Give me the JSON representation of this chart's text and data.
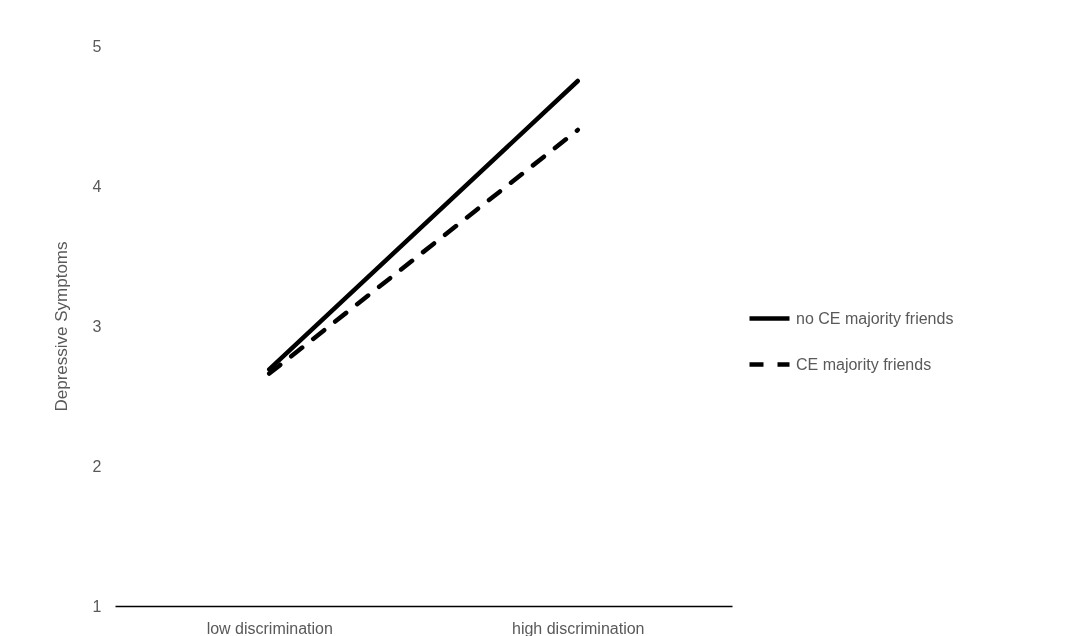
{
  "chart_data": {
    "type": "line",
    "ylabel": "Depressive Symptoms",
    "categories": [
      "low discrimination",
      "high discrimination"
    ],
    "series": [
      {
        "name": "no CE majority friends",
        "color": "#000000",
        "line_style": "solid",
        "values": [
          2.69,
          4.75
        ]
      },
      {
        "name": "CE majority friends",
        "color": "#000000",
        "line_style": "dashed",
        "values": [
          2.66,
          4.4
        ]
      }
    ],
    "ylim": [
      1,
      5
    ],
    "yticks": [
      1,
      2,
      3,
      4,
      5
    ],
    "grid": false,
    "legend": "right",
    "marker": "none"
  }
}
